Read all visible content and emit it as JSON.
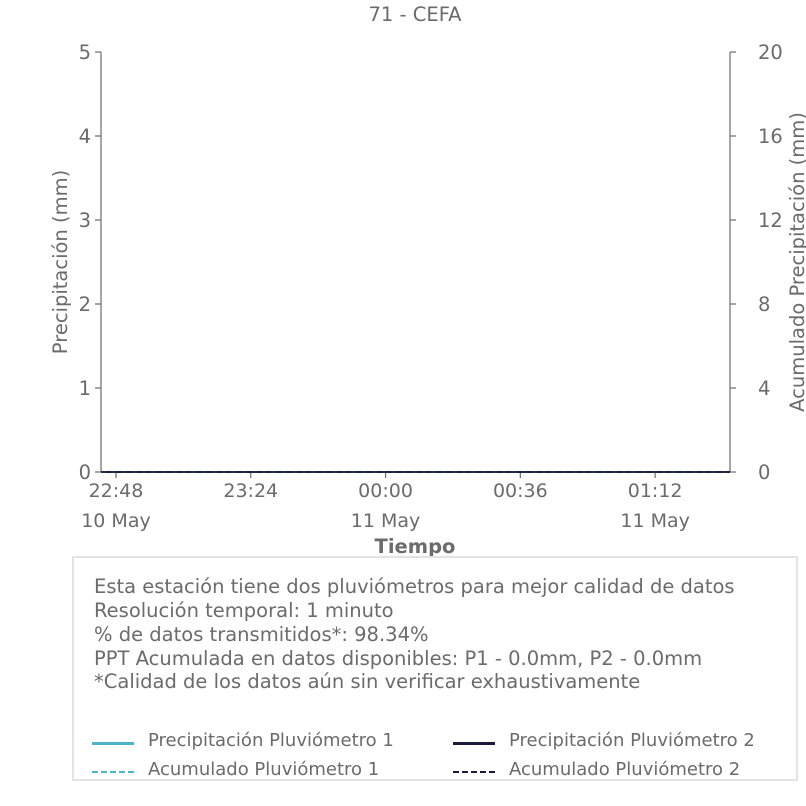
{
  "colors": {
    "p1": "#4fb3c7",
    "p2": "#1c1c3a",
    "axis": "#6b6b6b",
    "text": "#6b6b6b"
  },
  "chart_data": {
    "type": "line",
    "title": "71 - CEFA",
    "xlabel": "Tiempo",
    "ylabel": "Precipitación (mm)",
    "ylabel_right": "Acumulado Precipitación (mm)",
    "ylim": [
      0,
      5
    ],
    "ylim_right": [
      0,
      20
    ],
    "yticks": [
      "0",
      "1",
      "2",
      "3",
      "4",
      "5"
    ],
    "yticks_right": [
      "0",
      "4",
      "8",
      "12",
      "16",
      "20"
    ],
    "xticks": [
      {
        "time": "22:48",
        "date": "10 May"
      },
      {
        "time": "23:24",
        "date": ""
      },
      {
        "time": "00:00",
        "date": "11 May"
      },
      {
        "time": "00:36",
        "date": ""
      },
      {
        "time": "01:12",
        "date": "11 May"
      }
    ],
    "xlim": [
      "10 May 22:44",
      "11 May 01:32"
    ],
    "grid": false,
    "series": [
      {
        "name": "Precipitación Pluviómetro 1",
        "axis": "left",
        "style": "solid",
        "x": [
          "10 May 22:44",
          "11 May 01:32"
        ],
        "y": [
          0.0,
          0.0
        ]
      },
      {
        "name": "Precipitación Pluviómetro 2",
        "axis": "left",
        "style": "solid",
        "x": [
          "10 May 22:44",
          "11 May 01:32"
        ],
        "y": [
          0.0,
          0.0
        ]
      },
      {
        "name": "Acumulado Pluviómetro 1",
        "axis": "right",
        "style": "dashed",
        "x": [
          "10 May 22:44",
          "11 May 01:32"
        ],
        "y": [
          0.0,
          0.0
        ]
      },
      {
        "name": "Acumulado Pluviómetro 2",
        "axis": "right",
        "style": "dashed",
        "x": [
          "10 May 22:44",
          "11 May 01:32"
        ],
        "y": [
          0.0,
          0.0
        ]
      }
    ]
  },
  "info": {
    "lines": [
      "Esta estación tiene dos pluviómetros para mejor calidad de datos",
      "Resolución temporal: 1 minuto",
      "% de datos transmitidos*: 98.34%",
      "PPT Acumulada en datos disponibles: P1 - 0.0mm, P2 - 0.0mm",
      "*Calidad de los datos aún sin verificar exhaustivamente"
    ]
  },
  "legend": [
    {
      "label": "Precipitación Pluviómetro 1",
      "color": "#4fb3c7",
      "style": "solid"
    },
    {
      "label": "Precipitación Pluviómetro 2",
      "color": "#1c1c3a",
      "style": "solid"
    },
    {
      "label": "Acumulado Pluviómetro 1",
      "color": "#4fb3c7",
      "style": "dashed"
    },
    {
      "label": "Acumulado Pluviómetro 2",
      "color": "#1c1c3a",
      "style": "dashed"
    }
  ]
}
